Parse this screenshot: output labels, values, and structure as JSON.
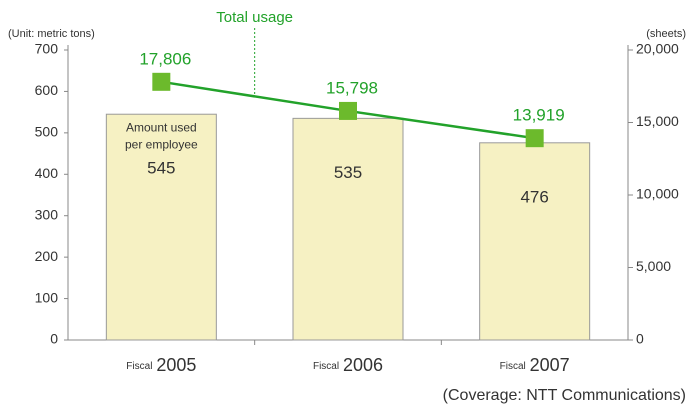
{
  "chart_data": {
    "type": "bar_line",
    "left_unit": "(Unit: metric tons)",
    "right_unit": "(sheets)",
    "x_label_prefix": "Fiscal",
    "categories": [
      "2005",
      "2006",
      "2007"
    ],
    "bar_annotation": [
      "Amount used",
      "per employee"
    ],
    "line_label": "Total usage",
    "series": [
      {
        "name": "Amount used per employee",
        "color": "#f6f1c3",
        "values": [
          545,
          535,
          476
        ]
      },
      {
        "name": "Total usage",
        "color": "#22a22a",
        "axis": "y2",
        "values": [
          17806,
          15798,
          13919
        ],
        "value_labels": [
          "17,806",
          "15,798",
          "13,919"
        ]
      }
    ],
    "ylim": [
      0,
      700
    ],
    "yticks": [
      0,
      100,
      200,
      300,
      400,
      500,
      600,
      700
    ],
    "y2lim": [
      0,
      20000
    ],
    "y2ticks": [
      0,
      {
        "value": 5000,
        "label": "5,000"
      },
      {
        "value": 10000,
        "label": "10,000"
      },
      {
        "value": 15000,
        "label": "15,000"
      },
      {
        "value": 20000,
        "label": "20,000"
      }
    ],
    "footnote": "(Coverage: NTT Communications)"
  }
}
